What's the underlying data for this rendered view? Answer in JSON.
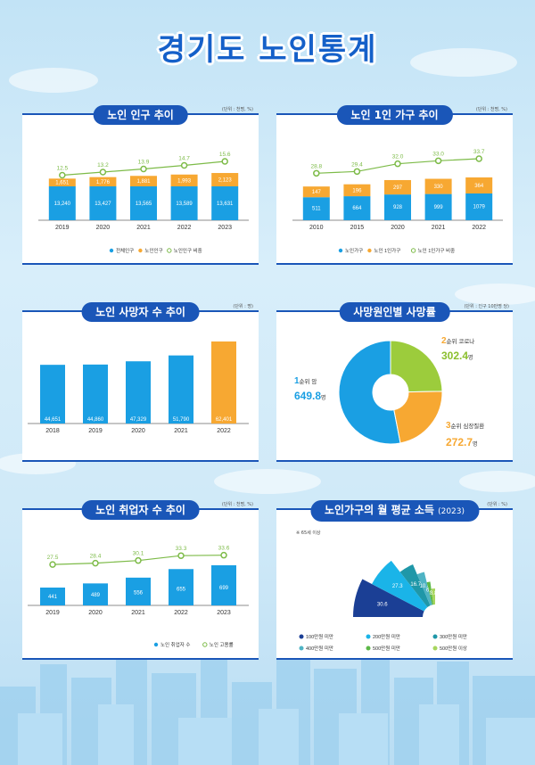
{
  "page_title": "경기도 노인통계",
  "colors": {
    "blue": "#1a9fe3",
    "orange": "#f7a832",
    "green": "#7dbb48",
    "navy": "#1a56b8"
  },
  "chart_data": [
    {
      "id": "pop",
      "type": "bar",
      "title": "노인 인구 추이",
      "unit": "(단위 : 천명, %)",
      "categories": [
        "2019",
        "2020",
        "2021",
        "2022",
        "2023"
      ],
      "series": [
        {
          "name": "전체인구",
          "values": [
            "13,240",
            "13,427",
            "13,565",
            "13,589",
            "13,631"
          ]
        },
        {
          "name": "노인인구",
          "values": [
            "1,651",
            "1,776",
            "1,881",
            "1,993",
            "2,123"
          ]
        },
        {
          "name": "노인인구 비중",
          "values": [
            12.5,
            13.2,
            13.9,
            14.7,
            15.6
          ]
        }
      ]
    },
    {
      "id": "single",
      "type": "bar",
      "title": "노인 1인 가구 추이",
      "unit": "(단위 : 천명, %)",
      "categories": [
        "2010",
        "2015",
        "2020",
        "2021",
        "2022"
      ],
      "series": [
        {
          "name": "노인가구",
          "values": [
            511,
            664,
            928,
            999,
            1079
          ]
        },
        {
          "name": "노인 1인가구",
          "values": [
            147,
            196,
            297,
            330,
            364
          ]
        },
        {
          "name": "노인 1인가구 비중",
          "values": [
            28.8,
            29.4,
            32.0,
            33.0,
            33.7
          ]
        }
      ]
    },
    {
      "id": "deaths",
      "type": "bar",
      "title": "노인 사망자 수 추이",
      "unit": "(단위 : 명)",
      "categories": [
        "2018",
        "2019",
        "2020",
        "2021",
        "2022"
      ],
      "values": [
        "44,651",
        "44,860",
        "47,329",
        "51,790",
        "62,401"
      ]
    },
    {
      "id": "causes",
      "type": "pie",
      "title": "사망원인별 사망률",
      "unit": "(단위 : 인구 10만명 당)",
      "slices": [
        {
          "rank": "1",
          "rank_suffix": "순위",
          "label": "암",
          "value": 649.8,
          "value_text": "649.8",
          "unit": "명",
          "color": "#1a9fe3"
        },
        {
          "rank": "2",
          "rank_suffix": "순위",
          "label": "코로나",
          "value": 302.4,
          "value_text": "302.4",
          "unit": "명",
          "color": "#9ccc3c"
        },
        {
          "rank": "3",
          "rank_suffix": "순위",
          "label": "심장질환",
          "value": 272.7,
          "value_text": "272.7",
          "unit": "명",
          "color": "#f7a832"
        }
      ]
    },
    {
      "id": "employ",
      "type": "bar",
      "title": "노인 취업자 수 추이",
      "unit": "(단위 : 천명, %)",
      "categories": [
        "2019",
        "2020",
        "2021",
        "2022",
        "2023"
      ],
      "series": [
        {
          "name": "노인 취업자 수",
          "values": [
            441,
            489,
            556,
            655,
            699
          ]
        },
        {
          "name": "노인 고용률",
          "values": [
            27.5,
            28.4,
            30.1,
            33.3,
            33.6
          ]
        }
      ]
    },
    {
      "id": "income",
      "type": "pie",
      "title": "노인가구의 월 평균 소득",
      "title_year": "(2023)",
      "unit": "(단위 : %)",
      "note": "※ 65세 이상",
      "slices": [
        {
          "label": "100만원 미만",
          "value": 30.6,
          "color": "#1b3f95"
        },
        {
          "label": "200만원 미만",
          "value": 27.3,
          "color": "#1ab4e8"
        },
        {
          "label": "300만원 미만",
          "value": 16.7,
          "color": "#1f97a8"
        },
        {
          "label": "400만원 미만",
          "value": 10.4,
          "color": "#4fb3c4"
        },
        {
          "label": "500만원 미만",
          "value": 6.3,
          "color": "#5cb847"
        },
        {
          "label": "500만원 이상",
          "value": 8.8,
          "color": "#a7d55d"
        }
      ]
    }
  ]
}
